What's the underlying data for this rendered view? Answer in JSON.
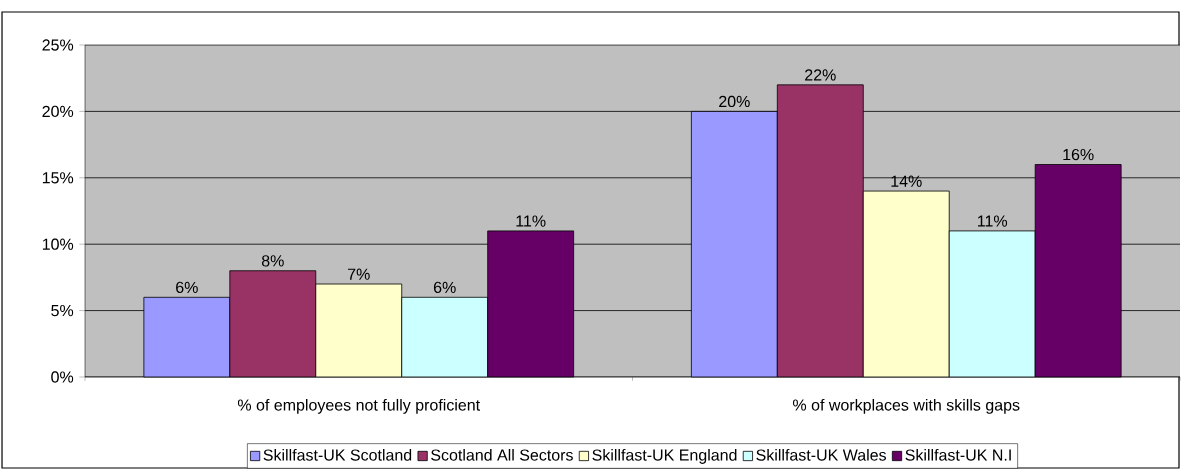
{
  "chart_data": {
    "type": "bar",
    "categories": [
      "% of employees not fully proficient",
      "% of workplaces with skills gaps"
    ],
    "series": [
      {
        "name": "Skillfast-UK Scotland",
        "color": "#9999ff",
        "values": [
          6,
          20
        ],
        "value_labels": [
          "6%",
          "20%"
        ]
      },
      {
        "name": "Scotland All Sectors",
        "color": "#993366",
        "values": [
          8,
          22
        ],
        "value_labels": [
          "8%",
          "22%"
        ]
      },
      {
        "name": "Skillfast-UK England",
        "color": "#ffffcc",
        "values": [
          7,
          14
        ],
        "value_labels": [
          "7%",
          "14%"
        ]
      },
      {
        "name": "Skillfast-UK Wales",
        "color": "#ccffff",
        "values": [
          6,
          11
        ],
        "value_labels": [
          "6%",
          "11%"
        ]
      },
      {
        "name": "Skillfast-UK N.I",
        "color": "#660066",
        "values": [
          11,
          16
        ],
        "value_labels": [
          "11%",
          "16%"
        ]
      }
    ],
    "ylim": [
      0,
      25
    ],
    "yticks": [
      {
        "value": 0,
        "label": "0%"
      },
      {
        "value": 5,
        "label": "5%"
      },
      {
        "value": 10,
        "label": "10%"
      },
      {
        "value": 15,
        "label": "15%"
      },
      {
        "value": 20,
        "label": "20%"
      },
      {
        "value": 25,
        "label": "25%"
      }
    ],
    "grid": "y",
    "legend": "bottom"
  }
}
